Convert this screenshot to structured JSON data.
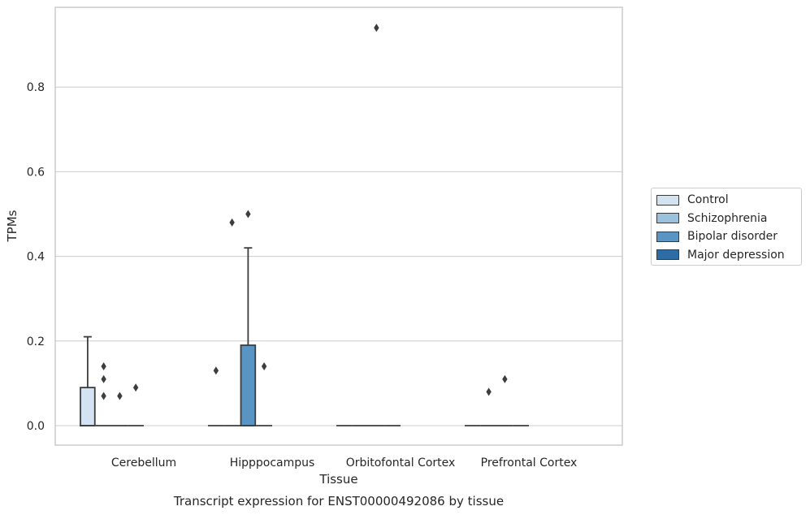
{
  "chart_data": {
    "type": "box",
    "title": "Transcript expression for ENST00000492086 by tissue",
    "xlabel": "Tissue",
    "ylabel": "TPMs",
    "categories": [
      "Cerebellum",
      "Hipppocampus",
      "Orbitofontal Cortex",
      "Prefrontal Cortex"
    ],
    "yticks": [
      "0.0",
      "0.2",
      "0.4",
      "0.6",
      "0.8"
    ],
    "ylim": [
      -0.045,
      0.99
    ],
    "grid": true,
    "legend_position": "right",
    "series": [
      {
        "name": "Control",
        "color": "#d3e3f2",
        "boxes": [
          {
            "q1": 0.0,
            "median": 0.0,
            "q3": 0.09,
            "whisker_low": 0.0,
            "whisker_high": 0.21,
            "outliers": []
          },
          {
            "q1": 0.0,
            "median": 0.0,
            "q3": 0.0,
            "whisker_low": 0.0,
            "whisker_high": 0.0,
            "outliers": [
              0.13
            ]
          },
          {
            "q1": 0.0,
            "median": 0.0,
            "q3": 0.0,
            "whisker_low": 0.0,
            "whisker_high": 0.0,
            "outliers": []
          },
          {
            "q1": 0.0,
            "median": 0.0,
            "q3": 0.0,
            "whisker_low": 0.0,
            "whisker_high": 0.0,
            "outliers": []
          }
        ]
      },
      {
        "name": "Schizophrenia",
        "color": "#9ac2dd",
        "boxes": [
          {
            "q1": 0.0,
            "median": 0.0,
            "q3": 0.0,
            "whisker_low": 0.0,
            "whisker_high": 0.0,
            "outliers": [
              0.07,
              0.11,
              0.14
            ]
          },
          {
            "q1": 0.0,
            "median": 0.0,
            "q3": 0.0,
            "whisker_low": 0.0,
            "whisker_high": 0.0,
            "outliers": [
              0.48
            ]
          },
          {
            "q1": 0.0,
            "median": 0.0,
            "q3": 0.0,
            "whisker_low": 0.0,
            "whisker_high": 0.0,
            "outliers": []
          },
          {
            "q1": 0.0,
            "median": 0.0,
            "q3": 0.0,
            "whisker_low": 0.0,
            "whisker_high": 0.0,
            "outliers": [
              0.08
            ]
          }
        ]
      },
      {
        "name": "Bipolar disorder",
        "color": "#5a94c3",
        "boxes": [
          {
            "q1": 0.0,
            "median": 0.0,
            "q3": 0.0,
            "whisker_low": 0.0,
            "whisker_high": 0.0,
            "outliers": [
              0.07
            ]
          },
          {
            "q1": 0.0,
            "median": 0.0,
            "q3": 0.19,
            "whisker_low": 0.0,
            "whisker_high": 0.42,
            "outliers": [
              0.5
            ]
          },
          {
            "q1": 0.0,
            "median": 0.0,
            "q3": 0.0,
            "whisker_low": 0.0,
            "whisker_high": 0.0,
            "outliers": [
              0.94
            ]
          },
          {
            "q1": 0.0,
            "median": 0.0,
            "q3": 0.0,
            "whisker_low": 0.0,
            "whisker_high": 0.0,
            "outliers": [
              0.11
            ]
          }
        ]
      },
      {
        "name": "Major depression",
        "color": "#2e6ca6",
        "boxes": [
          {
            "q1": 0.0,
            "median": 0.0,
            "q3": 0.0,
            "whisker_low": 0.0,
            "whisker_high": 0.0,
            "outliers": [
              0.09
            ]
          },
          {
            "q1": 0.0,
            "median": 0.0,
            "q3": 0.0,
            "whisker_low": 0.0,
            "whisker_high": 0.0,
            "outliers": [
              0.14
            ]
          },
          {
            "q1": 0.0,
            "median": 0.0,
            "q3": 0.0,
            "whisker_low": 0.0,
            "whisker_high": 0.0,
            "outliers": []
          },
          {
            "q1": 0.0,
            "median": 0.0,
            "q3": 0.0,
            "whisker_low": 0.0,
            "whisker_high": 0.0,
            "outliers": []
          }
        ]
      }
    ]
  }
}
